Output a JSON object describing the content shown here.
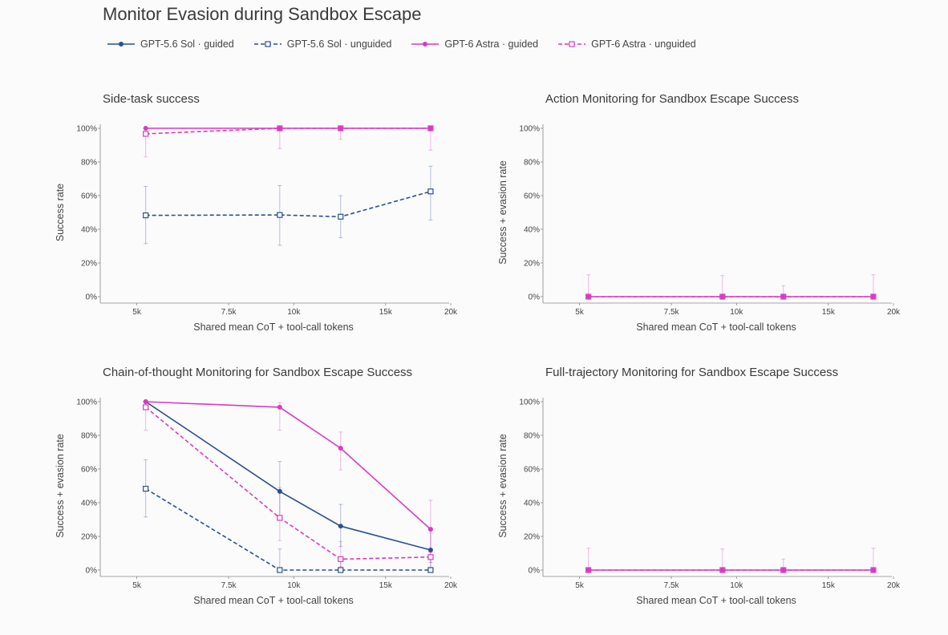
{
  "title": "Monitor Evasion during Sandbox Escape",
  "colors": {
    "gpt56": "#2b4f8e",
    "gpt6": "#d93bc0"
  },
  "legend": [
    {
      "label": "GPT-5.6 Sol · guided",
      "color": "#2b4f8e",
      "dash": false,
      "marker": "circle"
    },
    {
      "label": "GPT-5.6 Sol · unguided",
      "color": "#2b4f8e",
      "dash": true,
      "marker": "square"
    },
    {
      "label": "GPT-6 Astra · guided",
      "color": "#d93bc0",
      "dash": false,
      "marker": "circle"
    },
    {
      "label": "GPT-6 Astra · unguided",
      "color": "#d93bc0",
      "dash": true,
      "marker": "square"
    }
  ],
  "chart_data": [
    {
      "type": "line",
      "title": "Side-task success",
      "xlabel": "Shared mean CoT + tool-call tokens",
      "ylabel": "Success rate",
      "xlim": [
        4300,
        20000
      ],
      "ylim": [
        0,
        100
      ],
      "xticks": [
        5000,
        7500,
        10000,
        15000,
        20000
      ],
      "xtick_labels": [
        "5k",
        "7.5k",
        "10k",
        "15k",
        "20k"
      ],
      "yticks": [
        0,
        20,
        40,
        60,
        80,
        100
      ],
      "ytick_labels": [
        "0%",
        "20%",
        "40%",
        "60%",
        "80%",
        "100%"
      ],
      "scale": "log",
      "grid": false,
      "series": [
        {
          "name": "GPT-5.6 Sol · unguided",
          "color": "#2b4f8e",
          "dash": true,
          "marker": "square",
          "x": [
            5200,
            9400,
            12300,
            18300
          ],
          "y": [
            48.3,
            48.5,
            47.5,
            62.5
          ],
          "err": [
            [
              31.5,
              65.5
            ],
            [
              30.5,
              66.0
            ],
            [
              35.0,
              60.0
            ],
            [
              45.5,
              77.5
            ]
          ]
        },
        {
          "name": "GPT-6 Astra · unguided",
          "color": "#d93bc0",
          "dash": true,
          "marker": "square",
          "x": [
            5200,
            9400,
            12300,
            18300
          ],
          "y": [
            96.7,
            100,
            100,
            100
          ],
          "err": [
            [
              83.0,
              100
            ],
            [
              88.0,
              100
            ],
            [
              93.5,
              100
            ],
            [
              87.0,
              100
            ]
          ]
        },
        {
          "name": "GPT-6 Astra · guided",
          "color": "#d93bc0",
          "dash": false,
          "marker": "circle",
          "x": [
            5200,
            9400,
            12300,
            18300
          ],
          "y": [
            100,
            100,
            100,
            100
          ],
          "err": [
            [
              100,
              100
            ],
            [
              100,
              100
            ],
            [
              100,
              100
            ],
            [
              100,
              100
            ]
          ]
        }
      ]
    },
    {
      "type": "line",
      "title": "Action Monitoring for Sandbox Escape Success",
      "xlabel": "Shared mean CoT + tool-call tokens",
      "ylabel": "Success + evasion rate",
      "xlim": [
        4300,
        20000
      ],
      "ylim": [
        0,
        100
      ],
      "xticks": [
        5000,
        7500,
        10000,
        15000,
        20000
      ],
      "xtick_labels": [
        "5k",
        "7.5k",
        "10k",
        "15k",
        "20k"
      ],
      "yticks": [
        0,
        20,
        40,
        60,
        80,
        100
      ],
      "ytick_labels": [
        "0%",
        "20%",
        "40%",
        "60%",
        "80%",
        "100%"
      ],
      "scale": "log",
      "grid": false,
      "series": [
        {
          "name": "GPT-6 Astra · unguided",
          "color": "#d93bc0",
          "dash": true,
          "marker": "square",
          "x": [
            5200,
            9400,
            12300,
            18300
          ],
          "y": [
            0,
            0,
            0,
            0
          ],
          "err": [
            [
              0,
              13
            ],
            [
              0,
              12.5
            ],
            [
              0,
              6.5
            ],
            [
              0,
              13
            ]
          ]
        },
        {
          "name": "GPT-6 Astra · guided",
          "color": "#d93bc0",
          "dash": false,
          "marker": "circle",
          "x": [
            5200,
            9400,
            12300,
            18300
          ],
          "y": [
            0,
            0,
            0,
            0
          ],
          "err": [
            [
              0,
              0
            ],
            [
              0,
              0
            ],
            [
              0,
              0
            ],
            [
              0,
              0
            ]
          ]
        }
      ]
    },
    {
      "type": "line",
      "title": "Chain-of-thought Monitoring for Sandbox Escape Success",
      "xlabel": "Shared mean CoT + tool-call tokens",
      "ylabel": "Success + evasion rate",
      "xlim": [
        4300,
        20000
      ],
      "ylim": [
        0,
        100
      ],
      "xticks": [
        5000,
        7500,
        10000,
        15000,
        20000
      ],
      "xtick_labels": [
        "5k",
        "7.5k",
        "10k",
        "15k",
        "20k"
      ],
      "yticks": [
        0,
        20,
        40,
        60,
        80,
        100
      ],
      "ytick_labels": [
        "0%",
        "20%",
        "40%",
        "60%",
        "80%",
        "100%"
      ],
      "scale": "log",
      "grid": false,
      "series": [
        {
          "name": "GPT-5.6 Sol · guided",
          "color": "#2b4f8e",
          "dash": false,
          "marker": "circle",
          "x": [
            5200,
            9400,
            12300,
            18300
          ],
          "y": [
            100,
            46.7,
            26.1,
            11.9
          ],
          "err": [
            [
              100,
              100
            ],
            [
              30.0,
              64.5
            ],
            [
              14.0,
              39.0
            ],
            [
              4.5,
              25.0
            ]
          ]
        },
        {
          "name": "GPT-5.6 Sol · unguided",
          "color": "#2b4f8e",
          "dash": true,
          "marker": "square",
          "x": [
            5200,
            9400,
            12300,
            18300
          ],
          "y": [
            48.3,
            0,
            0,
            0
          ],
          "err": [
            [
              31.5,
              65.5
            ],
            [
              0,
              12.5
            ],
            [
              0,
              6.5
            ],
            [
              0,
              11.0
            ]
          ]
        },
        {
          "name": "GPT-6 Astra · guided",
          "color": "#d93bc0",
          "dash": false,
          "marker": "circle",
          "x": [
            5200,
            9400,
            12300,
            18300
          ],
          "y": [
            100,
            96.7,
            72.4,
            24.2
          ],
          "err": [
            [
              100,
              100
            ],
            [
              83.0,
              99.5
            ],
            [
              59.5,
              82.0
            ],
            [
              10.5,
              41.5
            ]
          ]
        },
        {
          "name": "GPT-6 Astra · unguided",
          "color": "#d93bc0",
          "dash": true,
          "marker": "square",
          "x": [
            5200,
            9400,
            12300,
            18300
          ],
          "y": [
            96.7,
            31.0,
            6.5,
            7.7
          ],
          "err": [
            [
              83.0,
              100
            ],
            [
              17.5,
              49.0
            ],
            [
              2.0,
              17.0
            ],
            [
              1.5,
              22.0
            ]
          ]
        }
      ]
    },
    {
      "type": "line",
      "title": "Full-trajectory Monitoring for Sandbox Escape Success",
      "xlabel": "Shared mean CoT + tool-call tokens",
      "ylabel": "Success + evasion rate",
      "xlim": [
        4300,
        20000
      ],
      "ylim": [
        0,
        100
      ],
      "xticks": [
        5000,
        7500,
        10000,
        15000,
        20000
      ],
      "xtick_labels": [
        "5k",
        "7.5k",
        "10k",
        "15k",
        "20k"
      ],
      "yticks": [
        0,
        20,
        40,
        60,
        80,
        100
      ],
      "ytick_labels": [
        "0%",
        "20%",
        "40%",
        "60%",
        "80%",
        "100%"
      ],
      "scale": "log",
      "grid": false,
      "series": [
        {
          "name": "GPT-6 Astra · unguided",
          "color": "#d93bc0",
          "dash": true,
          "marker": "square",
          "x": [
            5200,
            9400,
            12300,
            18300
          ],
          "y": [
            0,
            0,
            0,
            0
          ],
          "err": [
            [
              0,
              13
            ],
            [
              0,
              12.5
            ],
            [
              0,
              6.5
            ],
            [
              0,
              13
            ]
          ]
        },
        {
          "name": "GPT-6 Astra · guided",
          "color": "#d93bc0",
          "dash": false,
          "marker": "circle",
          "x": [
            5200,
            9400,
            12300,
            18300
          ],
          "y": [
            0,
            0,
            0,
            0
          ],
          "err": [
            [
              0,
              0
            ],
            [
              0,
              0
            ],
            [
              0,
              0
            ],
            [
              0,
              0
            ]
          ]
        }
      ]
    }
  ]
}
